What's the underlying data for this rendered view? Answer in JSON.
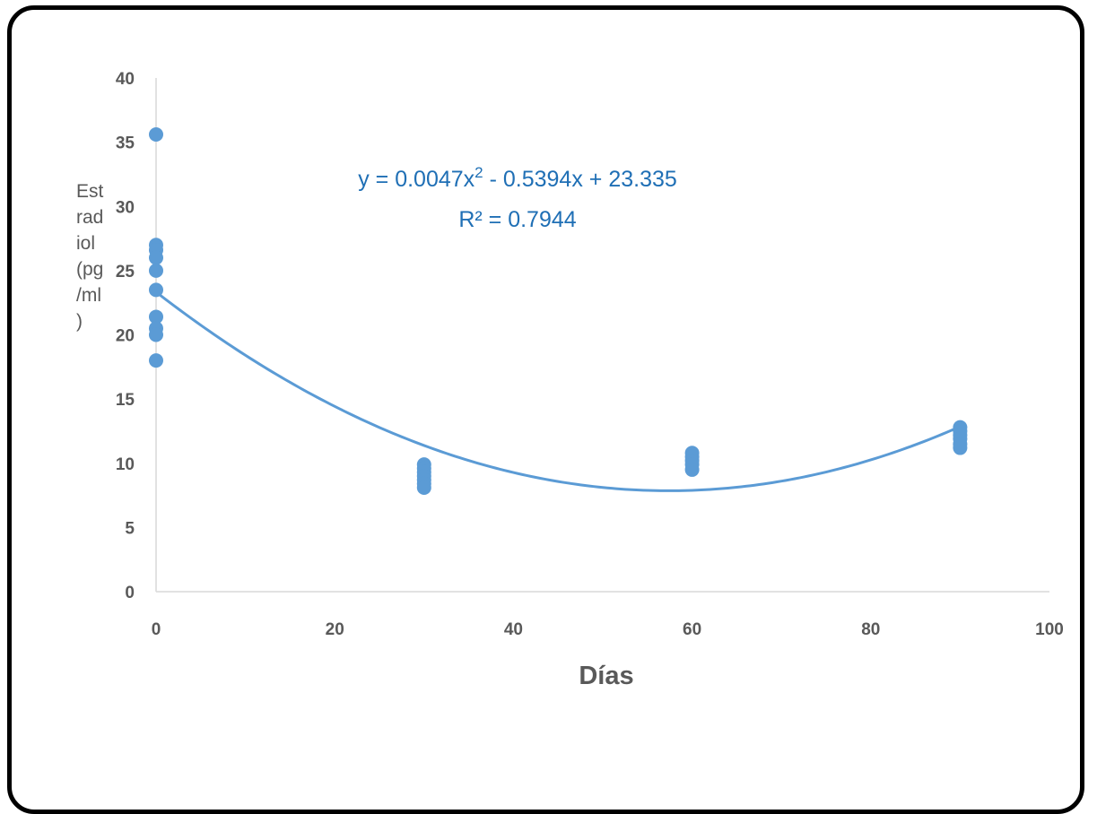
{
  "chart_data": {
    "type": "scatter",
    "xlabel": "Días",
    "ylabel_lines": [
      "Est",
      "rad",
      "iol",
      "(pg",
      "/ml",
      ")"
    ],
    "xlim": [
      0,
      100
    ],
    "ylim": [
      0,
      40
    ],
    "xticks": [
      0,
      20,
      40,
      60,
      80,
      100
    ],
    "yticks": [
      0,
      5,
      10,
      15,
      20,
      25,
      30,
      35,
      40
    ],
    "grid": false,
    "legend": "none",
    "series": [
      {
        "color": "#5b9bd5",
        "points": [
          [
            0,
            35.6
          ],
          [
            0,
            27.0
          ],
          [
            0,
            26.6
          ],
          [
            0,
            26.0
          ],
          [
            0,
            25.0
          ],
          [
            0,
            23.5
          ],
          [
            0,
            21.4
          ],
          [
            0,
            20.5
          ],
          [
            0,
            20.0
          ],
          [
            0,
            18.0
          ],
          [
            30,
            9.9
          ],
          [
            30,
            9.6
          ],
          [
            30,
            9.3
          ],
          [
            30,
            9.0
          ],
          [
            30,
            8.7
          ],
          [
            30,
            8.4
          ],
          [
            30,
            8.1
          ],
          [
            60,
            10.8
          ],
          [
            60,
            10.5
          ],
          [
            60,
            10.2
          ],
          [
            60,
            9.9
          ],
          [
            60,
            9.5
          ],
          [
            90,
            12.8
          ],
          [
            90,
            12.5
          ],
          [
            90,
            12.2
          ],
          [
            90,
            11.9
          ],
          [
            90,
            11.5
          ],
          [
            90,
            11.2
          ]
        ]
      }
    ],
    "trendline": {
      "type": "polynomial",
      "coefficients": [
        0.0047,
        -0.5394,
        23.335
      ],
      "x_range": [
        0,
        90
      ],
      "color": "#5b9bd5",
      "equation_label": "y = 0.0047x",
      "equation_sup": "2",
      "equation_rest": " - 0.5394x + 23.335",
      "r2_label": "R² = 0.7944"
    }
  }
}
